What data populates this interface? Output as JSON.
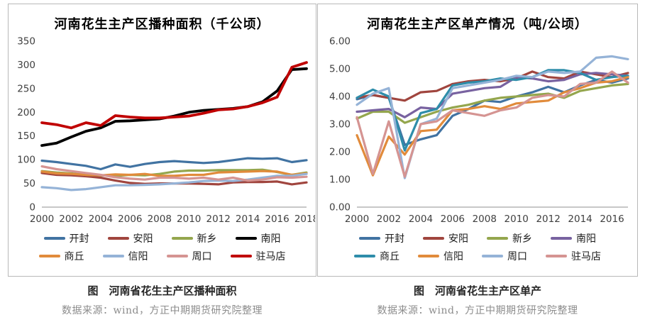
{
  "chart_data": [
    {
      "type": "line",
      "title": "河南花生主产区播种面积（千公顷）",
      "caption": "图　河南省花生主产区播种面积",
      "source_note": "数据来源：wind，方正中期期货研究院整理",
      "xlabel": "",
      "ylabel": "",
      "grid": false,
      "legend_position": "bottom",
      "ylim": [
        0,
        350
      ],
      "yticks": [
        0,
        50,
        100,
        150,
        200,
        250,
        300,
        350
      ],
      "ytick_labels": [
        "0",
        "50",
        "100",
        "150",
        "200",
        "250",
        "300",
        "350"
      ],
      "x": [
        2000,
        2001,
        2002,
        2003,
        2004,
        2005,
        2006,
        2007,
        2008,
        2009,
        2010,
        2011,
        2012,
        2013,
        2014,
        2015,
        2016,
        2017,
        2018
      ],
      "x_tick_labels": [
        "2000",
        "2002",
        "2004",
        "2006",
        "2008",
        "2010",
        "2012",
        "2014",
        "2016",
        "2018"
      ],
      "series": [
        {
          "id": "kaifeng",
          "name": "开封",
          "color": "#4173A2",
          "values": [
            98,
            95,
            91,
            87,
            80,
            90,
            85,
            91,
            95,
            97,
            95,
            93,
            95,
            99,
            103,
            102,
            103,
            95,
            99
          ]
        },
        {
          "id": "anyang",
          "name": "安阳",
          "color": "#A0453E",
          "values": [
            72,
            68,
            67,
            65,
            62,
            56,
            51,
            49,
            50,
            50,
            50,
            49,
            48,
            52,
            53,
            53,
            54,
            48,
            52
          ]
        },
        {
          "id": "xinxiang",
          "name": "新乡",
          "color": "#94A64D",
          "values": [
            76,
            73,
            71,
            68,
            67,
            66,
            68,
            67,
            70,
            75,
            77,
            77,
            78,
            78,
            78,
            79,
            74,
            68,
            73
          ]
        },
        {
          "id": "nanyang",
          "name": "南阳",
          "color": "#000000",
          "width": 3.8,
          "values": [
            130,
            135,
            148,
            160,
            167,
            181,
            182,
            184,
            186,
            192,
            200,
            204,
            206,
            208,
            212,
            222,
            245,
            290,
            292
          ]
        },
        {
          "id": "shangqiu",
          "name": "商丘",
          "color": "#E18B3B",
          "values": [
            75,
            71,
            70,
            68,
            67,
            69,
            68,
            70,
            66,
            66,
            68,
            68,
            73,
            74,
            75,
            76,
            75,
            68,
            71
          ]
        },
        {
          "id": "xinyang",
          "name": "信阳",
          "color": "#95B3D7",
          "values": [
            42,
            40,
            36,
            38,
            42,
            46,
            46,
            47,
            48,
            50,
            52,
            55,
            56,
            55,
            58,
            62,
            66,
            66,
            70
          ]
        },
        {
          "id": "zhoukou",
          "name": "周口",
          "color": "#D59492",
          "values": [
            86,
            80,
            76,
            72,
            68,
            63,
            60,
            58,
            62,
            62,
            60,
            62,
            58,
            62,
            56,
            58,
            63,
            62,
            64
          ]
        },
        {
          "id": "zhumadian",
          "name": "驻马店",
          "color": "#C00000",
          "width": 3.8,
          "values": [
            178,
            174,
            167,
            178,
            172,
            193,
            190,
            188,
            188,
            190,
            192,
            198,
            205,
            207,
            212,
            220,
            232,
            295,
            305
          ]
        }
      ]
    },
    {
      "type": "line",
      "title": "河南花生主产区单产情况（吨/公顷）",
      "caption": "图　河南省花生主产区单产",
      "source_note": "数据来源：wind，方正中期期货研究院整理",
      "xlabel": "",
      "ylabel": "",
      "grid": false,
      "legend_position": "bottom",
      "ylim": [
        0,
        6
      ],
      "yticks": [
        0,
        1,
        2,
        3,
        4,
        5,
        6
      ],
      "ytick_labels": [
        "0.00",
        "1.00",
        "2.00",
        "3.00",
        "4.00",
        "5.00",
        "6.00"
      ],
      "x": [
        2000,
        2001,
        2002,
        2003,
        2004,
        2005,
        2006,
        2007,
        2008,
        2009,
        2010,
        2011,
        2012,
        2013,
        2014,
        2015,
        2016,
        2017
      ],
      "x_tick_labels": [
        "2000",
        "2002",
        "2004",
        "2006",
        "2008",
        "2010",
        "2012",
        "2014",
        "2016"
      ],
      "series": [
        {
          "id": "kaifeng",
          "name": "开封",
          "color": "#4173A2",
          "values": [
            3.9,
            4.05,
            3.95,
            2.25,
            2.45,
            2.6,
            3.3,
            3.55,
            3.85,
            3.8,
            4.0,
            4.15,
            4.35,
            4.15,
            4.4,
            4.6,
            4.5,
            4.65
          ]
        },
        {
          "id": "anyang",
          "name": "安阳",
          "color": "#A0453E",
          "values": [
            3.95,
            4.05,
            3.95,
            3.85,
            4.15,
            4.2,
            4.45,
            4.55,
            4.6,
            4.55,
            4.65,
            4.9,
            4.7,
            4.65,
            4.9,
            4.8,
            4.7,
            4.85
          ]
        },
        {
          "id": "xinxiang",
          "name": "新乡",
          "color": "#94A64D",
          "values": [
            3.2,
            3.45,
            3.45,
            3.05,
            3.25,
            3.45,
            3.6,
            3.7,
            3.85,
            3.95,
            4.0,
            4.05,
            4.1,
            3.95,
            4.2,
            4.3,
            4.4,
            4.45
          ]
        },
        {
          "id": "nanyang",
          "name": "南阳",
          "color": "#7862A0",
          "values": [
            3.45,
            3.5,
            3.55,
            3.25,
            3.6,
            3.55,
            4.1,
            4.2,
            4.3,
            4.35,
            4.7,
            4.65,
            4.55,
            4.6,
            4.8,
            4.85,
            4.8,
            4.75
          ]
        },
        {
          "id": "shangqiu",
          "name": "商丘",
          "color": "#2E8DAA",
          "values": [
            3.95,
            4.25,
            4.0,
            2.05,
            3.4,
            3.55,
            4.4,
            4.5,
            4.55,
            4.65,
            4.6,
            4.7,
            4.95,
            4.95,
            4.85,
            4.6,
            4.7,
            4.75
          ]
        },
        {
          "id": "xinyang",
          "name": "信阳",
          "color": "#E18B3B",
          "values": [
            2.6,
            1.15,
            2.55,
            1.9,
            2.75,
            2.8,
            3.5,
            3.55,
            3.65,
            3.55,
            3.75,
            3.8,
            3.85,
            4.15,
            4.3,
            4.5,
            4.55,
            4.7
          ]
        },
        {
          "id": "zhoukou",
          "name": "周口",
          "color": "#95B3D7",
          "values": [
            3.7,
            4.1,
            4.3,
            1.05,
            3.0,
            3.2,
            4.3,
            4.4,
            4.5,
            4.6,
            4.75,
            4.7,
            4.9,
            4.85,
            4.9,
            5.4,
            5.45,
            5.35
          ]
        },
        {
          "id": "zhumadian",
          "name": "驻马店",
          "color": "#D59492",
          "values": [
            3.25,
            1.2,
            3.1,
            1.1,
            3.0,
            3.1,
            3.5,
            3.4,
            3.3,
            3.5,
            3.6,
            3.95,
            4.05,
            4.0,
            4.45,
            4.5,
            4.9,
            4.5
          ]
        }
      ]
    }
  ]
}
